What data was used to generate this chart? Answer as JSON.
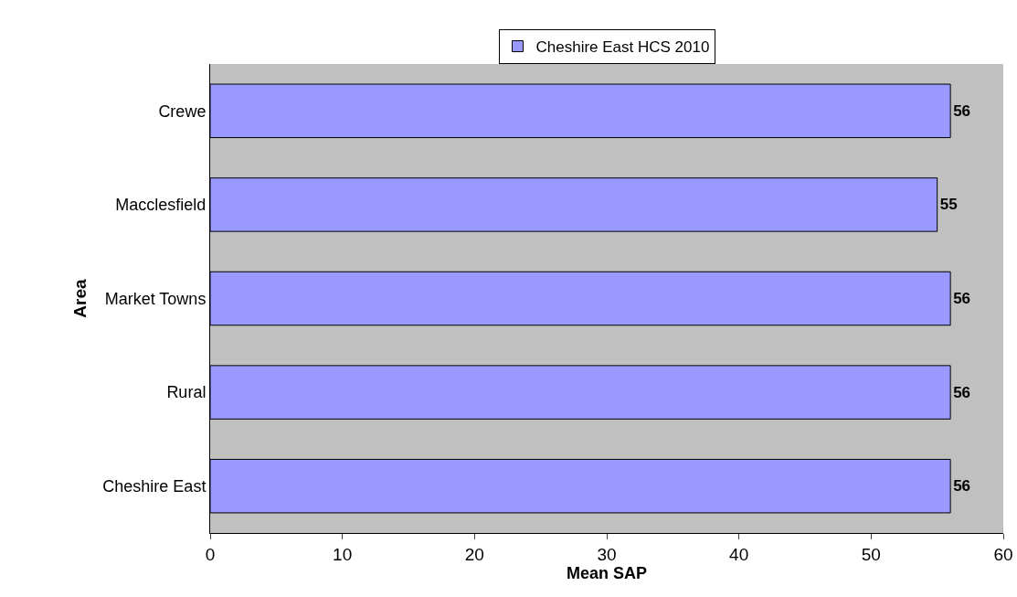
{
  "chart_data": {
    "type": "bar",
    "orientation": "horizontal",
    "xlabel": "Mean SAP",
    "ylabel": "Area",
    "categories": [
      "Crewe",
      "Macclesfield",
      "Market Towns",
      "Rural",
      "Cheshire East"
    ],
    "series": [
      {
        "name": "Cheshire East HCS 2010",
        "color": "#9999ff",
        "values": [
          56,
          55,
          56,
          56,
          56
        ]
      }
    ],
    "xlim": [
      0,
      60
    ],
    "xticks": [
      0,
      10,
      20,
      30,
      40,
      50,
      60
    ],
    "data_labels": true,
    "legend": "top",
    "grid": false
  }
}
